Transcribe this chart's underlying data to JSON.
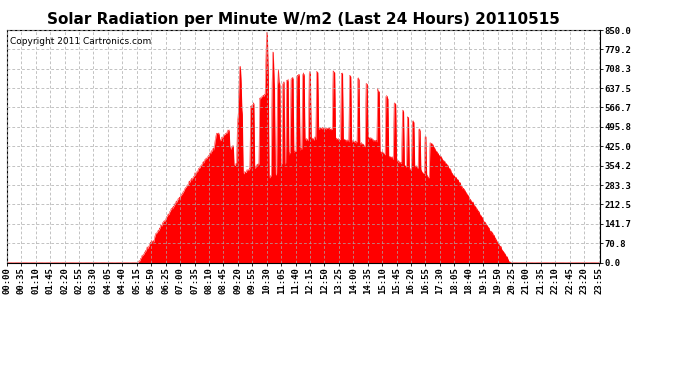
{
  "title": "Solar Radiation per Minute W/m2 (Last 24 Hours) 20110515",
  "copyright": "Copyright 2011 Cartronics.com",
  "y_ticks": [
    0.0,
    70.8,
    141.7,
    212.5,
    283.3,
    354.2,
    425.0,
    495.8,
    566.7,
    637.5,
    708.3,
    779.2,
    850.0
  ],
  "y_max": 850.0,
  "y_min": 0.0,
  "fill_color": "#FF0000",
  "line_color": "#FF0000",
  "background_color": "#FFFFFF",
  "grid_color": "#AAAAAA",
  "dashed_line_color": "#FF0000",
  "title_fontsize": 11,
  "copyright_fontsize": 6.5,
  "tick_fontsize": 6.5,
  "x_tick_step_minutes": 35,
  "n_points": 1440,
  "rise_minute": 318,
  "set_minute": 1220,
  "peak_value": 850
}
